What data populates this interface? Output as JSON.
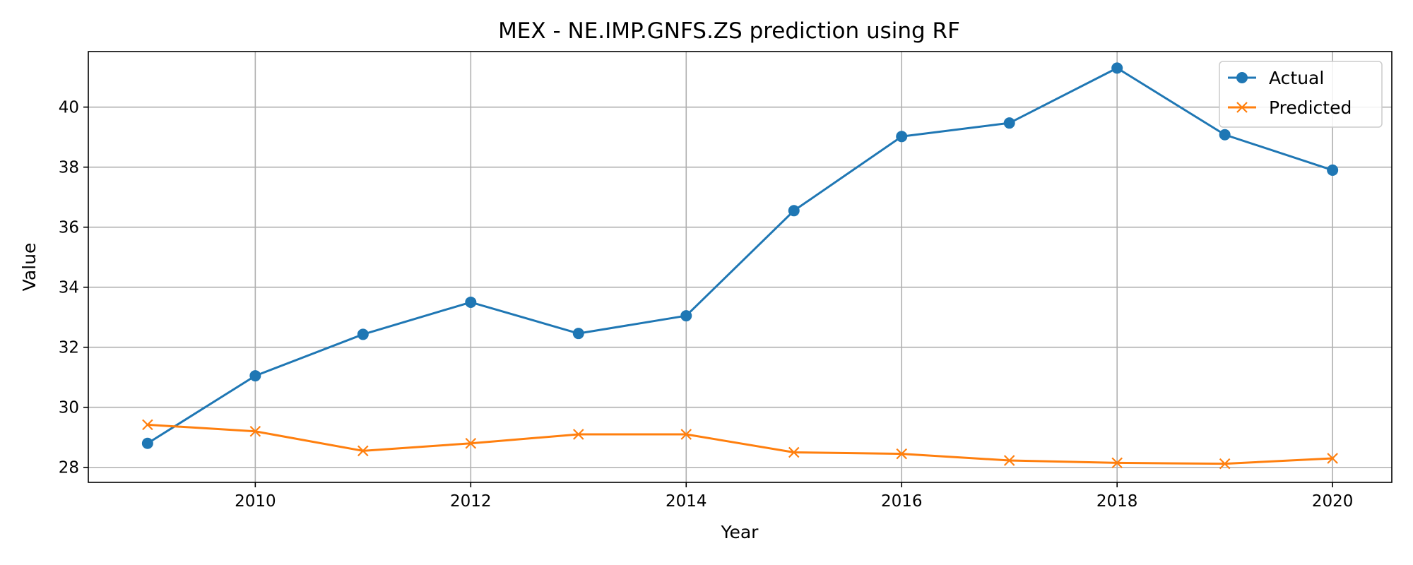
{
  "chart_data": {
    "type": "line",
    "title": "MEX - NE.IMP.GNFS.ZS prediction using RF",
    "xlabel": "Year",
    "ylabel": "Value",
    "x": [
      2009,
      2010,
      2011,
      2012,
      2013,
      2014,
      2015,
      2016,
      2017,
      2018,
      2019,
      2020
    ],
    "xlim": [
      2008.45,
      2020.55
    ],
    "ylim": [
      27.5,
      41.85
    ],
    "xticks": [
      2010,
      2012,
      2014,
      2016,
      2018,
      2020
    ],
    "yticks": [
      28,
      30,
      32,
      34,
      36,
      38,
      40
    ],
    "grid": true,
    "legend_position": "top-right",
    "series": [
      {
        "name": "Actual",
        "color": "#1f77b4",
        "marker": "circle",
        "values": [
          28.8,
          31.05,
          32.43,
          33.5,
          32.46,
          33.05,
          36.55,
          39.02,
          39.47,
          41.3,
          39.08,
          37.9
        ]
      },
      {
        "name": "Predicted",
        "color": "#ff7f0e",
        "marker": "x",
        "values": [
          29.42,
          29.2,
          28.55,
          28.8,
          29.1,
          29.1,
          28.5,
          28.45,
          28.23,
          28.15,
          28.12,
          28.3
        ]
      }
    ]
  }
}
